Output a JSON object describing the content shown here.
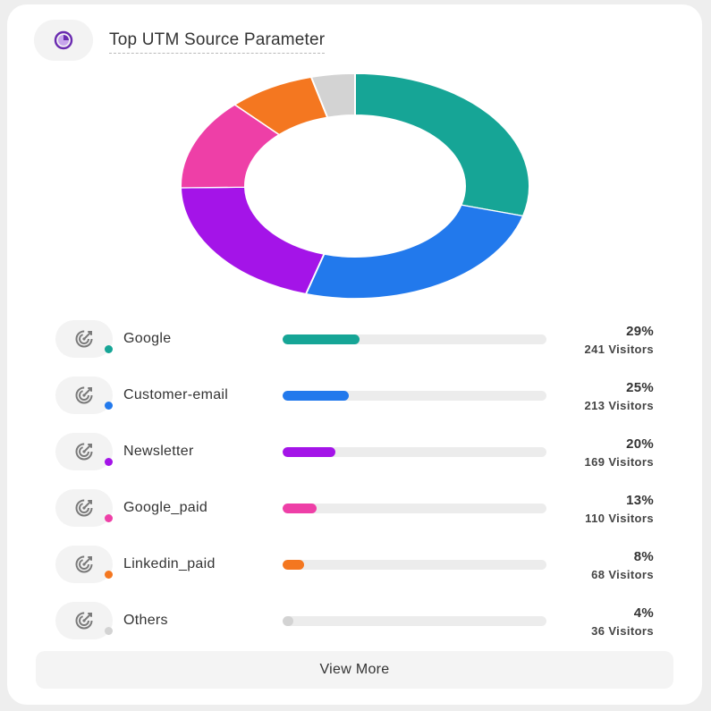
{
  "header": {
    "title": "Top UTM Source Parameter",
    "icon": "pie-chart-icon",
    "icon_color": "#6a2bb0"
  },
  "chart_data": {
    "type": "pie",
    "style": "donut",
    "title": "Top UTM Source Parameter",
    "categories": [
      "Google",
      "Customer-email",
      "Newsletter",
      "Google_paid",
      "Linkedin_paid",
      "Others"
    ],
    "values": [
      29,
      25,
      20,
      13,
      8,
      4
    ],
    "colors": [
      "#16a596",
      "#2279ec",
      "#a414e8",
      "#ee3fa7",
      "#f47720",
      "#d3d3d3"
    ]
  },
  "sources": [
    {
      "label": "Google",
      "percent_text": "29%",
      "visitors_text": "241 Visitors",
      "fill": 0.29,
      "color": "#16a596"
    },
    {
      "label": "Customer-email",
      "percent_text": "25%",
      "visitors_text": "213 Visitors",
      "fill": 0.25,
      "color": "#2279ec"
    },
    {
      "label": "Newsletter",
      "percent_text": "20%",
      "visitors_text": "169 Visitors",
      "fill": 0.2,
      "color": "#a414e8"
    },
    {
      "label": "Google_paid",
      "percent_text": "13%",
      "visitors_text": "110 Visitors",
      "fill": 0.13,
      "color": "#ee3fa7"
    },
    {
      "label": "Linkedin_paid",
      "percent_text": "8%",
      "visitors_text": "68 Visitors",
      "fill": 0.08,
      "color": "#f47720"
    },
    {
      "label": "Others",
      "percent_text": "4%",
      "visitors_text": "36 Visitors",
      "fill": 0.04,
      "color": "#d3d3d3"
    }
  ],
  "row_icon": "utm-target-icon",
  "footer": {
    "view_more_label": "View More"
  }
}
